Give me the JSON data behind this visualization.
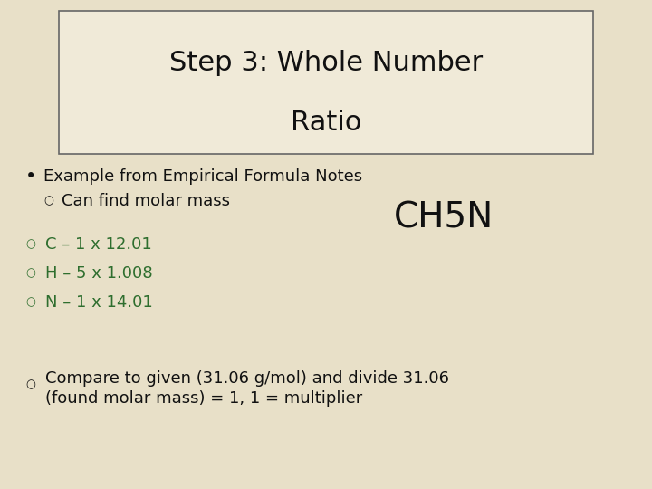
{
  "bg_color": "#e8e0c8",
  "title_line1": "Step 3: Whole Number",
  "title_line2": "Ratio",
  "title_fontsize": 22,
  "title_color": "#111111",
  "title_box_facecolor": "#f0ead8",
  "title_box_edgecolor": "#666666",
  "bullet_text": "Example from Empirical Formula Notes",
  "bullet_sub": "Can find molar mass",
  "formula": "CH5N",
  "formula_fontsize": 28,
  "formula_color": "#111111",
  "green_color": "#2e6e2e",
  "black_color": "#111111",
  "lines": [
    "C – 1 x 12.01",
    "H – 5 x 1.008",
    "N – 1 x 14.01"
  ],
  "compare_line1": "Compare to given (31.06 g/mol) and divide 31.06",
  "compare_line2": "(found molar mass) = 1, 1 = multiplier",
  "bullet_fontsize": 13,
  "line_fontsize": 13,
  "compare_fontsize": 13
}
